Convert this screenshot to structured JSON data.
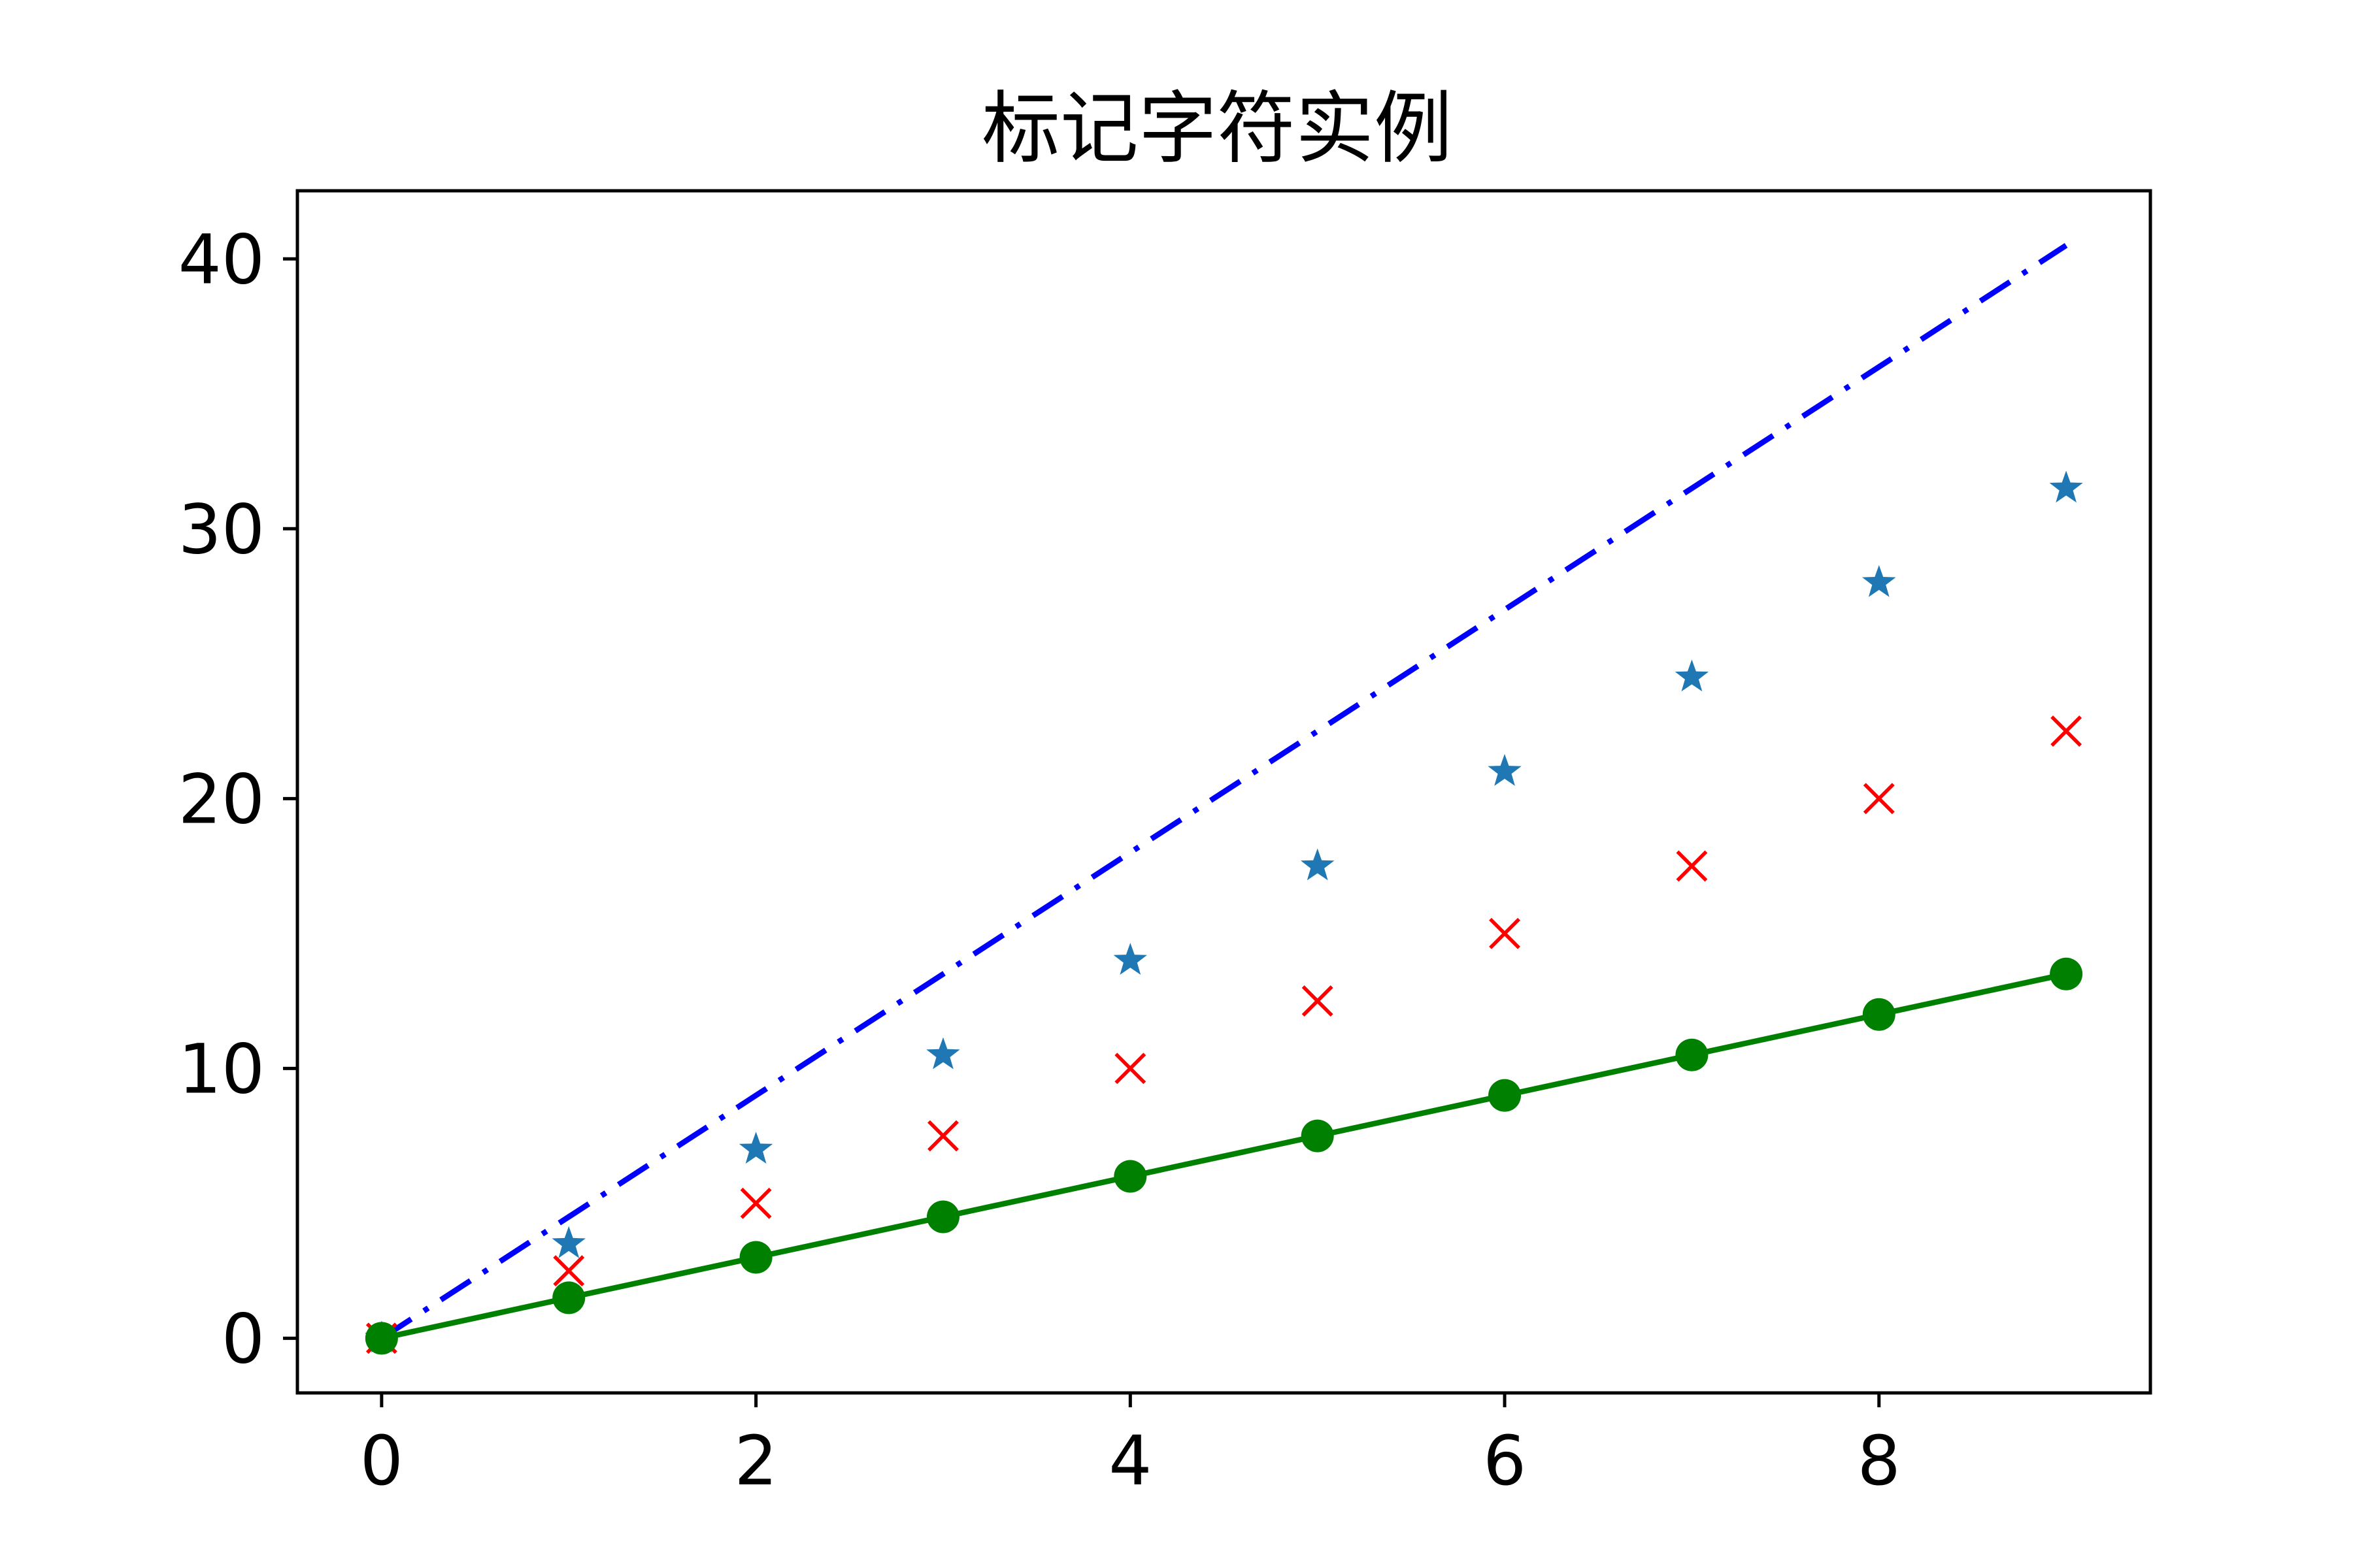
{
  "chart_data": {
    "type": "line",
    "title": "标记字符实例",
    "xlabel": "",
    "ylabel": "",
    "xlim": [
      -0.45,
      9.45
    ],
    "ylim": [
      -2.025,
      42.525
    ],
    "xticks": [
      0,
      2,
      4,
      6,
      8
    ],
    "yticks": [
      0,
      10,
      20,
      30,
      40
    ],
    "grid": false,
    "legend": "none",
    "x": [
      0,
      1,
      2,
      3,
      4,
      5,
      6,
      7,
      8,
      9
    ],
    "series": [
      {
        "style": "dashdot-line",
        "color": "#0000ff",
        "marker": "none",
        "values": [
          0,
          4.5,
          9,
          13.5,
          18,
          22.5,
          27,
          31.5,
          36,
          40.5
        ]
      },
      {
        "style": "markers-only",
        "color": "#1f77b4",
        "marker": "star",
        "values": [
          0,
          3.5,
          7,
          10.5,
          14,
          17.5,
          21,
          24.5,
          28,
          31.5
        ]
      },
      {
        "style": "markers-only",
        "color": "#ff0000",
        "marker": "x",
        "values": [
          0,
          2.5,
          5,
          7.5,
          10,
          12.5,
          15,
          17.5,
          20,
          22.5
        ]
      },
      {
        "style": "solid-line",
        "color": "#008000",
        "marker": "circle",
        "values": [
          0,
          1.5,
          3,
          4.5,
          6,
          7.5,
          9,
          10.5,
          12,
          13.5
        ]
      }
    ]
  }
}
